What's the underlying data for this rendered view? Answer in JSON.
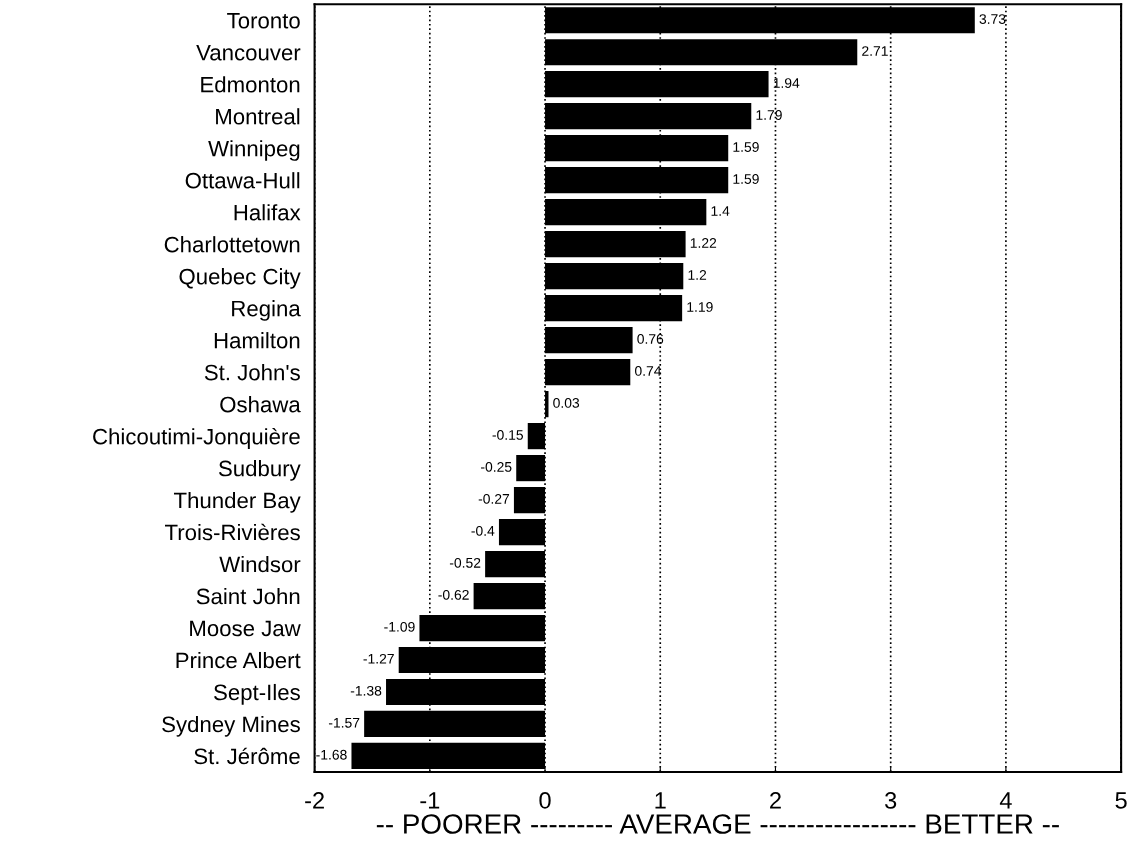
{
  "chart_data": {
    "type": "bar",
    "orientation": "horizontal",
    "xlabel": "-- POORER --------- AVERAGE ----------------- BETTER --",
    "categories": [
      "Toronto",
      "Vancouver",
      "Edmonton",
      "Montreal",
      "Winnipeg",
      "Ottawa-Hull",
      "Halifax",
      "Charlottetown",
      "Quebec City",
      "Regina",
      "Hamilton",
      "St. John's",
      "Oshawa",
      "Chicoutimi-Jonquière",
      "Sudbury",
      "Thunder Bay",
      "Trois-Rivières",
      "Windsor",
      "Saint John",
      "Moose Jaw",
      "Prince Albert",
      "Sept-Iles",
      "Sydney Mines",
      "St. Jérôme"
    ],
    "values": [
      3.73,
      2.71,
      1.94,
      1.79,
      1.59,
      1.59,
      1.4,
      1.22,
      1.2,
      1.19,
      0.76,
      0.74,
      0.03,
      -0.15,
      -0.25,
      -0.27,
      -0.4,
      -0.52,
      -0.62,
      -1.09,
      -1.27,
      -1.38,
      -1.57,
      -1.68
    ],
    "color": "#000000",
    "data_labels": true,
    "xlim": [
      -2,
      5
    ],
    "xticks": [
      -2,
      -1,
      0,
      1,
      2,
      3,
      4,
      5
    ],
    "grid": "x",
    "line_style": "dotted"
  }
}
